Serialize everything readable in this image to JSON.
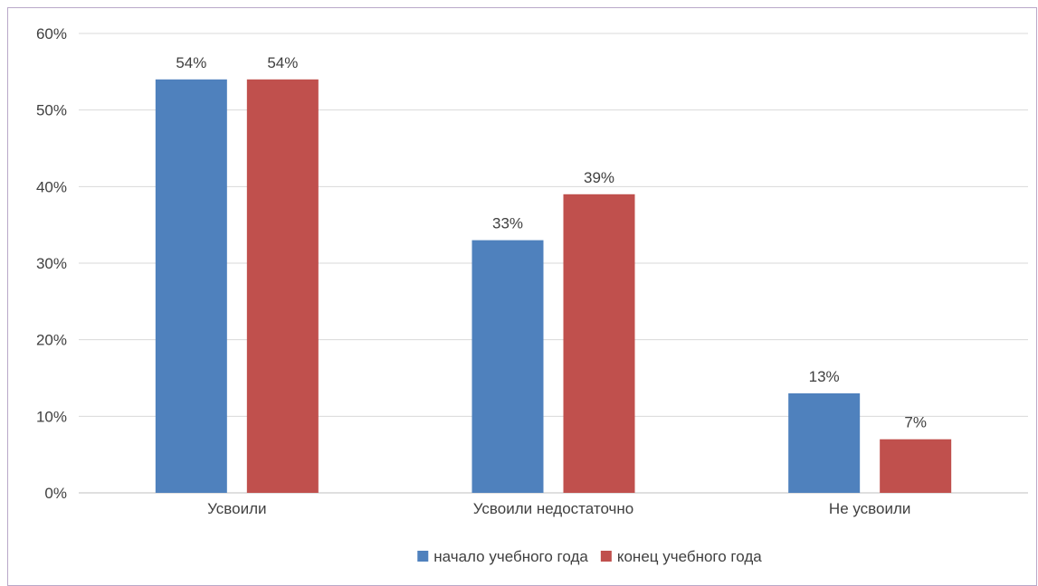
{
  "chart_data": {
    "type": "bar",
    "categories": [
      "Усвоили",
      "Усвоили недостаточно",
      "Не усвоили"
    ],
    "series": [
      {
        "name": "начало учебного года",
        "values": [
          54,
          33,
          13
        ],
        "color": "#4f81bd"
      },
      {
        "name": "конец учебного года",
        "values": [
          54,
          39,
          7
        ],
        "color": "#c0504d"
      }
    ],
    "data_labels": [
      [
        "54%",
        "33%",
        "13%"
      ],
      [
        "54%",
        "39%",
        "7%"
      ]
    ],
    "y_ticks": [
      "0%",
      "10%",
      "20%",
      "30%",
      "40%",
      "50%",
      "60%"
    ],
    "ylim": [
      0,
      60
    ],
    "grid": true,
    "legend_position": "bottom",
    "title": "",
    "xlabel": "",
    "ylabel": ""
  }
}
